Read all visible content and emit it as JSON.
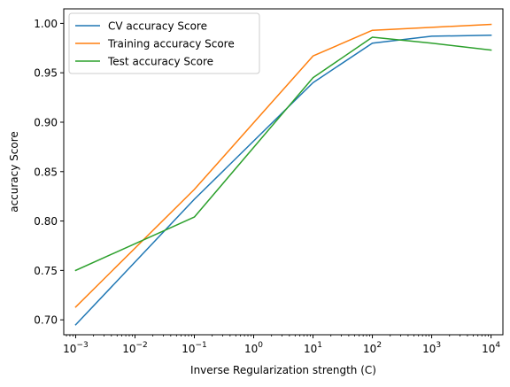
{
  "chart_data": {
    "type": "line",
    "xscale": "log",
    "x": [
      0.001,
      0.1,
      10,
      100,
      1000,
      10000
    ],
    "x_tick_labels": [
      {
        "value": 0.001,
        "base": "10",
        "exp": "−3"
      },
      {
        "value": 0.01,
        "base": "10",
        "exp": "−2"
      },
      {
        "value": 0.1,
        "base": "10",
        "exp": "−1"
      },
      {
        "value": 1,
        "base": "10",
        "exp": "0"
      },
      {
        "value": 10,
        "base": "10",
        "exp": "1"
      },
      {
        "value": 100,
        "base": "10",
        "exp": "2"
      },
      {
        "value": 1000,
        "base": "10",
        "exp": "3"
      },
      {
        "value": 10000,
        "base": "10",
        "exp": "4"
      }
    ],
    "y_ticks": [
      "0.70",
      "0.75",
      "0.80",
      "0.85",
      "0.90",
      "0.95",
      "1.00"
    ],
    "xlim": [
      0.00063,
      15850
    ],
    "ylim": [
      0.6849,
      1.0147
    ],
    "xlabel": "Inverse Regularization strength (C)",
    "ylabel": "accuracy Score",
    "grid": false,
    "legend_position": "top-left",
    "series": [
      {
        "name": "CV accuracy Score",
        "color": "#1f77b4",
        "values": [
          0.695,
          0.822,
          0.94,
          0.98,
          0.987,
          0.988
        ]
      },
      {
        "name": "Training accuracy Score",
        "color": "#ff7f0e",
        "values": [
          0.713,
          0.832,
          0.967,
          0.993,
          0.996,
          0.999
        ]
      },
      {
        "name": "Test accuracy Score",
        "color": "#2ca02c",
        "values": [
          0.75,
          0.804,
          0.945,
          0.986,
          0.98,
          0.973
        ]
      }
    ]
  }
}
